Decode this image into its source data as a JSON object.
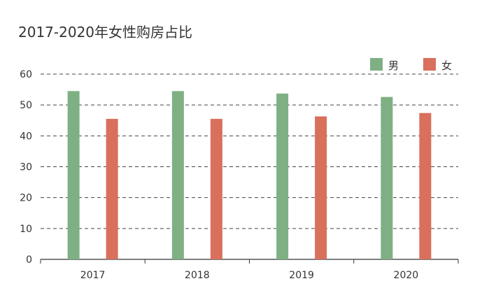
{
  "chart_data": {
    "type": "bar",
    "title": "2017-2020年女性购房占比",
    "categories": [
      "2017",
      "2018",
      "2019",
      "2020"
    ],
    "series": [
      {
        "name": "男",
        "values": [
          54.5,
          54.5,
          53.7,
          52.6
        ],
        "color": "#7fb083"
      },
      {
        "name": "女",
        "values": [
          45.5,
          45.5,
          46.3,
          47.4
        ],
        "color": "#d8705c"
      }
    ],
    "ylim": [
      0,
      60
    ],
    "yticks": [
      0,
      10,
      20,
      30,
      40,
      50,
      60
    ],
    "xlabel": "",
    "ylabel": "",
    "grid": "dashed-horizontal",
    "legend": "top-right"
  }
}
